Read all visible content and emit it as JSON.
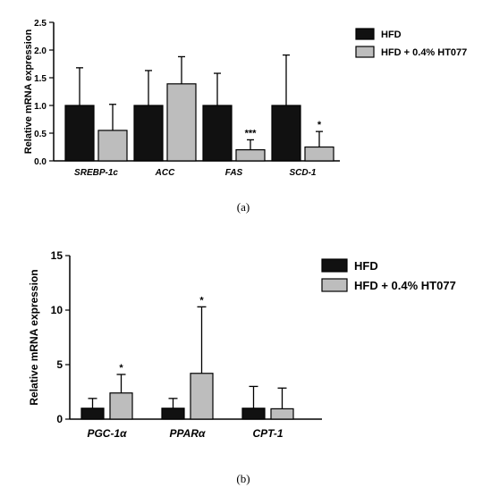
{
  "panel_labels": [
    "(a)",
    "(b)"
  ],
  "chart_data": [
    {
      "type": "bar",
      "ylabel": "Relative mRNA expression",
      "ylim": [
        0,
        2.5
      ],
      "yticks": [
        "0.0",
        "0.5",
        "1.0",
        "1.5",
        "2.0",
        "2.5"
      ],
      "categories": [
        "SREBP-1c",
        "ACC",
        "FAS",
        "SCD-1"
      ],
      "series": [
        {
          "name": "HFD",
          "color": "#111111",
          "values": [
            1.0,
            1.0,
            1.0,
            1.0
          ],
          "errors": [
            0.68,
            0.63,
            0.58,
            0.91
          ]
        },
        {
          "name": "HFD + 0.4%  HT077",
          "color": "#bdbdbd",
          "values": [
            0.55,
            1.39,
            0.2,
            0.25
          ],
          "errors": [
            0.47,
            0.49,
            0.18,
            0.28
          ]
        }
      ],
      "annotations": [
        {
          "category": 2,
          "series": 1,
          "text": "***"
        },
        {
          "category": 3,
          "series": 1,
          "text": "*"
        }
      ],
      "legend_position": "top-right"
    },
    {
      "type": "bar",
      "ylabel": "Relative mRNA expression",
      "ylim": [
        0,
        15
      ],
      "yticks": [
        "0",
        "5",
        "10",
        "15"
      ],
      "categories": [
        "PGC-1α",
        "PPARα",
        "CPT-1"
      ],
      "series": [
        {
          "name": "HFD",
          "color": "#111111",
          "values": [
            1.0,
            1.0,
            1.0
          ],
          "errors": [
            0.9,
            0.9,
            2.0
          ]
        },
        {
          "name": "HFD + 0.4%  HT077",
          "color": "#bdbdbd",
          "values": [
            2.4,
            4.2,
            0.95
          ],
          "errors": [
            1.7,
            6.1,
            1.9
          ]
        }
      ],
      "annotations": [
        {
          "category": 0,
          "series": 1,
          "text": "*"
        },
        {
          "category": 1,
          "series": 1,
          "text": "*"
        }
      ],
      "legend_position": "top-right"
    }
  ]
}
